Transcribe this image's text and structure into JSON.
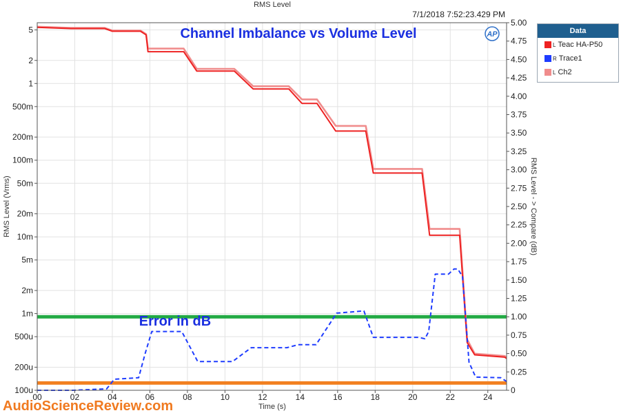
{
  "header": {
    "window_title": "RMS Level",
    "timestamp": "7/1/2018 7:52:23.429 PM",
    "logo_text": "AP"
  },
  "chart_data": {
    "type": "line",
    "title": "Channel Imbalance vs Volume Level",
    "annotation": "Error in dB",
    "xlabel": "Time (s)",
    "ylabel_left": "RMS Level (Vrms)",
    "ylabel_right": "RMS Level - > Compare (dB)",
    "x_range": [
      0,
      25
    ],
    "x_ticks": [
      "00",
      "02",
      "04",
      "06",
      "08",
      "10",
      "12",
      "14",
      "16",
      "18",
      "20",
      "22",
      "24"
    ],
    "y_left_scale": "log",
    "y_left_range": [
      0.0001,
      6.2
    ],
    "y_left_ticks": [
      {
        "label": "5",
        "value": 5
      },
      {
        "label": "2",
        "value": 2
      },
      {
        "label": "1",
        "value": 1
      },
      {
        "label": "500m",
        "value": 0.5
      },
      {
        "label": "200m",
        "value": 0.2
      },
      {
        "label": "100m",
        "value": 0.1
      },
      {
        "label": "50m",
        "value": 0.05
      },
      {
        "label": "20m",
        "value": 0.02
      },
      {
        "label": "10m",
        "value": 0.01
      },
      {
        "label": "5m",
        "value": 0.005
      },
      {
        "label": "2m",
        "value": 0.002
      },
      {
        "label": "1m",
        "value": 0.001
      },
      {
        "label": "500u",
        "value": 0.0005
      },
      {
        "label": "200u",
        "value": 0.0002
      },
      {
        "label": "100u",
        "value": 0.0001
      }
    ],
    "y_right_range": [
      0,
      5
    ],
    "y_right_ticks": [
      "0",
      "0.25",
      "0.50",
      "0.75",
      "1.00",
      "1.25",
      "1.50",
      "1.75",
      "2.00",
      "2.25",
      "2.50",
      "2.75",
      "3.00",
      "3.25",
      "3.50",
      "3.75",
      "4.00",
      "4.25",
      "4.50",
      "4.75",
      "5.00"
    ],
    "grid": true,
    "legend_title": "Data",
    "legend_position": "top-right",
    "series": [
      {
        "name": "Teac HA-P50",
        "channel": "L",
        "axis": "left",
        "color": "#ee2222",
        "x": [
          0.0,
          1.8,
          3.6,
          4.0,
          5.5,
          5.8,
          5.9,
          7.8,
          8.5,
          10.5,
          11.5,
          13.4,
          14.1,
          14.9,
          15.9,
          17.5,
          17.9,
          20.5,
          20.9,
          22.5,
          22.9,
          23.3,
          24.9,
          25.0
        ],
        "y": [
          5.4,
          5.2,
          5.2,
          4.8,
          4.8,
          4.3,
          2.6,
          2.6,
          1.45,
          1.45,
          0.85,
          0.85,
          0.55,
          0.55,
          0.24,
          0.24,
          0.068,
          0.068,
          0.0105,
          0.0105,
          0.00042,
          0.00029,
          0.00027,
          0.00026
        ]
      },
      {
        "name": "Trace1",
        "channel": "R",
        "axis": "right",
        "color": "#1e3cff",
        "x": [
          0.0,
          1.9,
          3.7,
          4.1,
          5.4,
          5.75,
          6.1,
          7.7,
          8.55,
          10.4,
          11.4,
          13.3,
          13.9,
          14.85,
          15.95,
          17.4,
          17.9,
          20.3,
          20.65,
          20.85,
          21.2,
          21.9,
          22.2,
          22.4,
          22.65,
          23.0,
          23.35,
          24.7,
          25.0
        ],
        "y": [
          0.0,
          0.0,
          0.02,
          0.15,
          0.17,
          0.5,
          0.8,
          0.8,
          0.39,
          0.39,
          0.58,
          0.58,
          0.62,
          0.62,
          1.05,
          1.08,
          0.72,
          0.72,
          0.7,
          0.8,
          1.58,
          1.58,
          1.65,
          1.65,
          1.55,
          0.38,
          0.18,
          0.17,
          0.12
        ]
      },
      {
        "name": "Ch2",
        "channel": "L",
        "axis": "left",
        "color": "#f08c8c",
        "x": [
          0.0,
          1.8,
          3.6,
          4.0,
          5.5,
          5.8,
          5.9,
          7.8,
          8.5,
          10.5,
          11.5,
          13.4,
          14.1,
          14.9,
          15.9,
          17.5,
          17.9,
          20.5,
          20.9,
          22.5,
          22.9,
          23.3,
          24.9,
          25.0
        ],
        "y": [
          5.5,
          5.3,
          5.3,
          4.9,
          4.9,
          4.4,
          2.85,
          2.85,
          1.55,
          1.55,
          0.92,
          0.92,
          0.62,
          0.62,
          0.28,
          0.28,
          0.077,
          0.077,
          0.0127,
          0.0127,
          0.00046,
          0.0003,
          0.00028,
          0.00027
        ]
      }
    ],
    "reference_lines": [
      {
        "axis": "right",
        "value": 1.0,
        "color": "#22aa44"
      },
      {
        "axis": "right",
        "value": 0.1,
        "color": "#f28020"
      }
    ]
  },
  "watermark": "AudioScienceReview.com"
}
